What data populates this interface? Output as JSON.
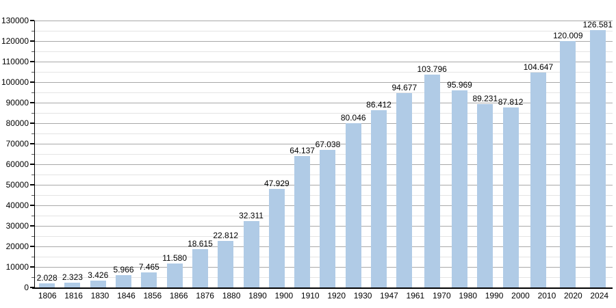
{
  "chart_data": {
    "type": "bar",
    "title": "",
    "xlabel": "",
    "ylabel": "",
    "categories": [
      "1806",
      "1816",
      "1830",
      "1846",
      "1856",
      "1866",
      "1876",
      "1880",
      "1890",
      "1900",
      "1910",
      "1920",
      "1930",
      "1947",
      "1961",
      "1970",
      "1980",
      "1990",
      "2000",
      "2010",
      "2020",
      "2024"
    ],
    "values": [
      2028,
      2323,
      3426,
      5966,
      7465,
      11580,
      18615,
      22812,
      32311,
      47929,
      64137,
      67038,
      80046,
      86412,
      94677,
      103796,
      95969,
      89231,
      87812,
      104647,
      120009,
      126581
    ],
    "value_labels": [
      "2.028",
      "2.323",
      "3.426",
      "5.966",
      "7.465",
      "11.580",
      "18.615",
      "22.812",
      "32.311",
      "47.929",
      "64.137",
      "67.038",
      "80.046",
      "86.412",
      "94.677",
      "103.796",
      "95.969",
      "89.231",
      "87.812",
      "104.647",
      "120.009",
      "126.581"
    ],
    "ylim": [
      0,
      130000
    ],
    "y_tick_step": 10000,
    "y_minor_step": 5000,
    "y_tick_labels": [
      "0",
      "10000",
      "20000",
      "30000",
      "40000",
      "50000",
      "60000",
      "70000",
      "80000",
      "90000",
      "100000",
      "110000",
      "120000",
      "130000"
    ],
    "grid": true,
    "legend": false,
    "colors": {
      "bar_fill": "#b0cbe6",
      "gridline_major": "#a8a8a8",
      "gridline_minor": "#e4e4e4",
      "axis": "#000000",
      "text": "#000000",
      "background": "#ffffff"
    }
  }
}
